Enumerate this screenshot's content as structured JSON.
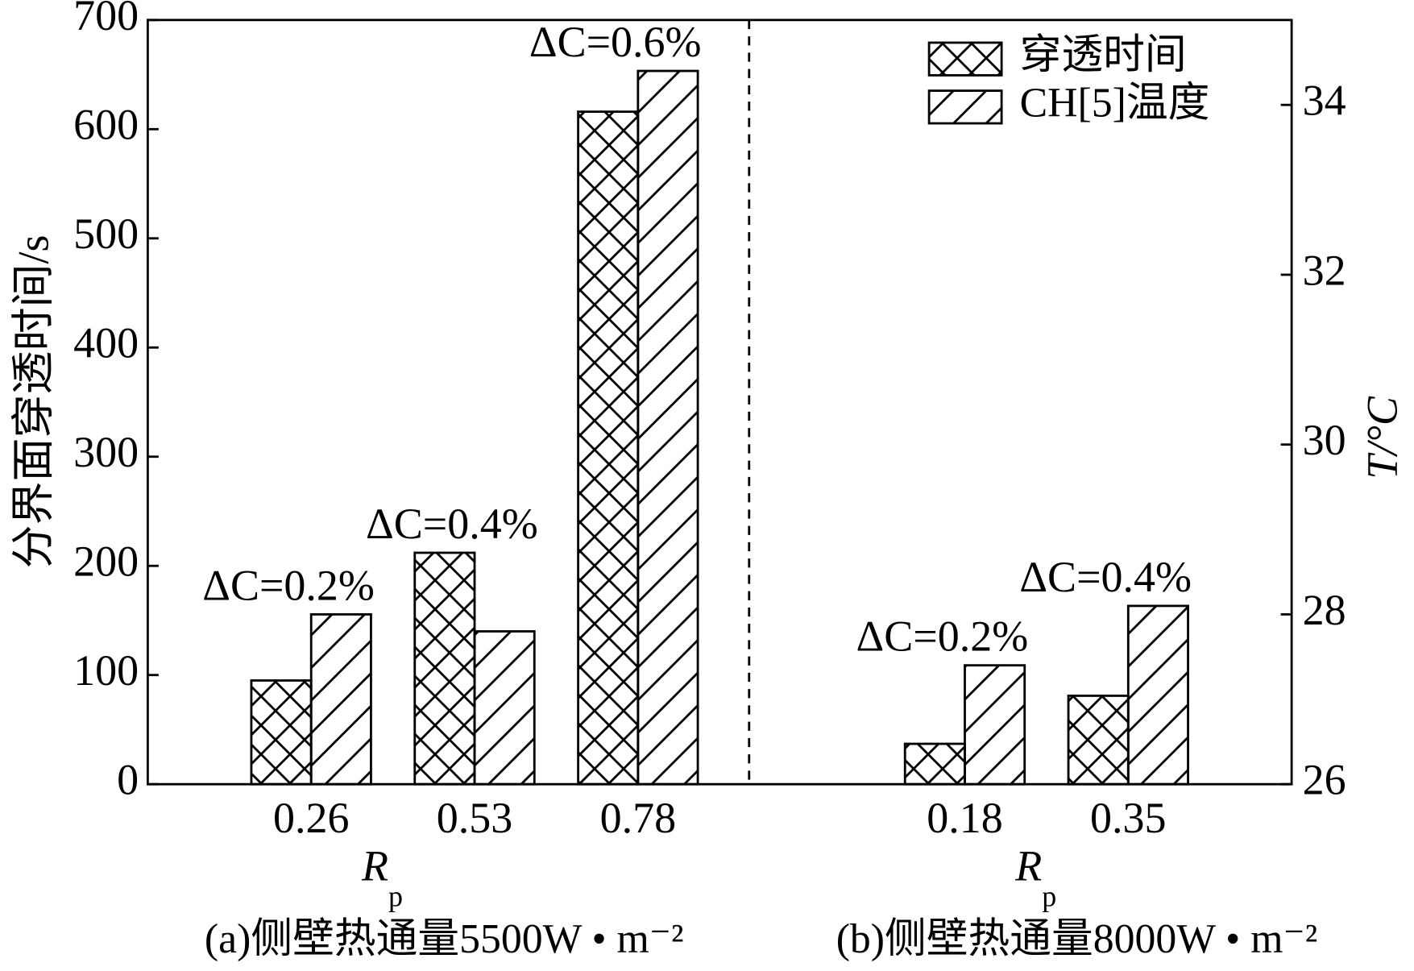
{
  "chart_data": {
    "type": "bar",
    "categories": [
      null,
      "0.26",
      "0.53",
      "0.78",
      null,
      "0.18",
      "0.35"
    ],
    "series": [
      {
        "name": "穿透时间",
        "color": "#000000",
        "pattern": "crosshatch",
        "values": [
          null,
          95,
          212,
          616,
          null,
          37,
          81
        ]
      },
      {
        "name": "CH[5]温度",
        "color": "#000000",
        "pattern": "diagonal",
        "axis": "y2",
        "values": [
          null,
          28.0,
          27.8,
          34.4,
          null,
          27.4,
          28.1
        ]
      }
    ],
    "annotations": [
      null,
      "ΔC=0.2%",
      "ΔC=0.4%",
      "ΔC=0.6%",
      null,
      "ΔC=0.2%",
      "ΔC=0.4%"
    ],
    "ylabel": "分界面穿透时间/s",
    "y2label": "T/°C",
    "xlabel": "R",
    "xlabel_sub": "p",
    "panel_captions": [
      "(a)侧壁热通量5500W • m⁻²",
      "(b)侧壁热通量8000W • m⁻²"
    ],
    "ylim": [
      0,
      700
    ],
    "yticks": [
      0,
      100,
      200,
      300,
      400,
      500,
      600,
      700
    ],
    "y2lim": [
      26,
      35
    ],
    "y2ticks": [
      26,
      28,
      30,
      32,
      34
    ],
    "legend": "upper right",
    "grid": false
  }
}
